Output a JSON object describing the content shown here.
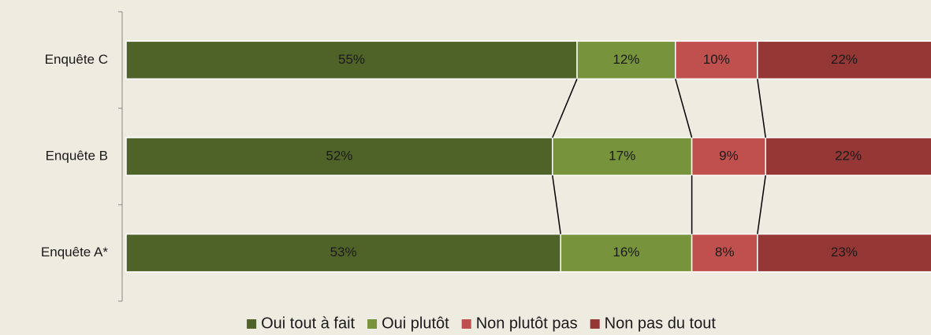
{
  "chart_data": {
    "type": "stacked-bar-horizontal",
    "categories": [
      "Enquête C",
      "Enquête B",
      "Enquête A*"
    ],
    "series": [
      {
        "name": "Oui tout à fait",
        "color": "#4f6228",
        "values": [
          55,
          52,
          53
        ],
        "value_labels": [
          "55%",
          "52%",
          "53%"
        ]
      },
      {
        "name": "Oui plutôt",
        "color": "#77933c",
        "values": [
          12,
          17,
          16
        ],
        "value_labels": [
          "12%",
          "17%",
          "16%"
        ]
      },
      {
        "name": "Non plutôt pas",
        "color": "#c0504d",
        "values": [
          10,
          9,
          8
        ],
        "value_labels": [
          "10%",
          "9%",
          "8%"
        ]
      },
      {
        "name": "Non pas du tout",
        "color": "#953735",
        "values": [
          22,
          22,
          23
        ],
        "value_labels": [
          "22%",
          "22%",
          "23%"
        ]
      }
    ],
    "xlim": [
      0,
      100
    ],
    "legend": "bottom"
  }
}
